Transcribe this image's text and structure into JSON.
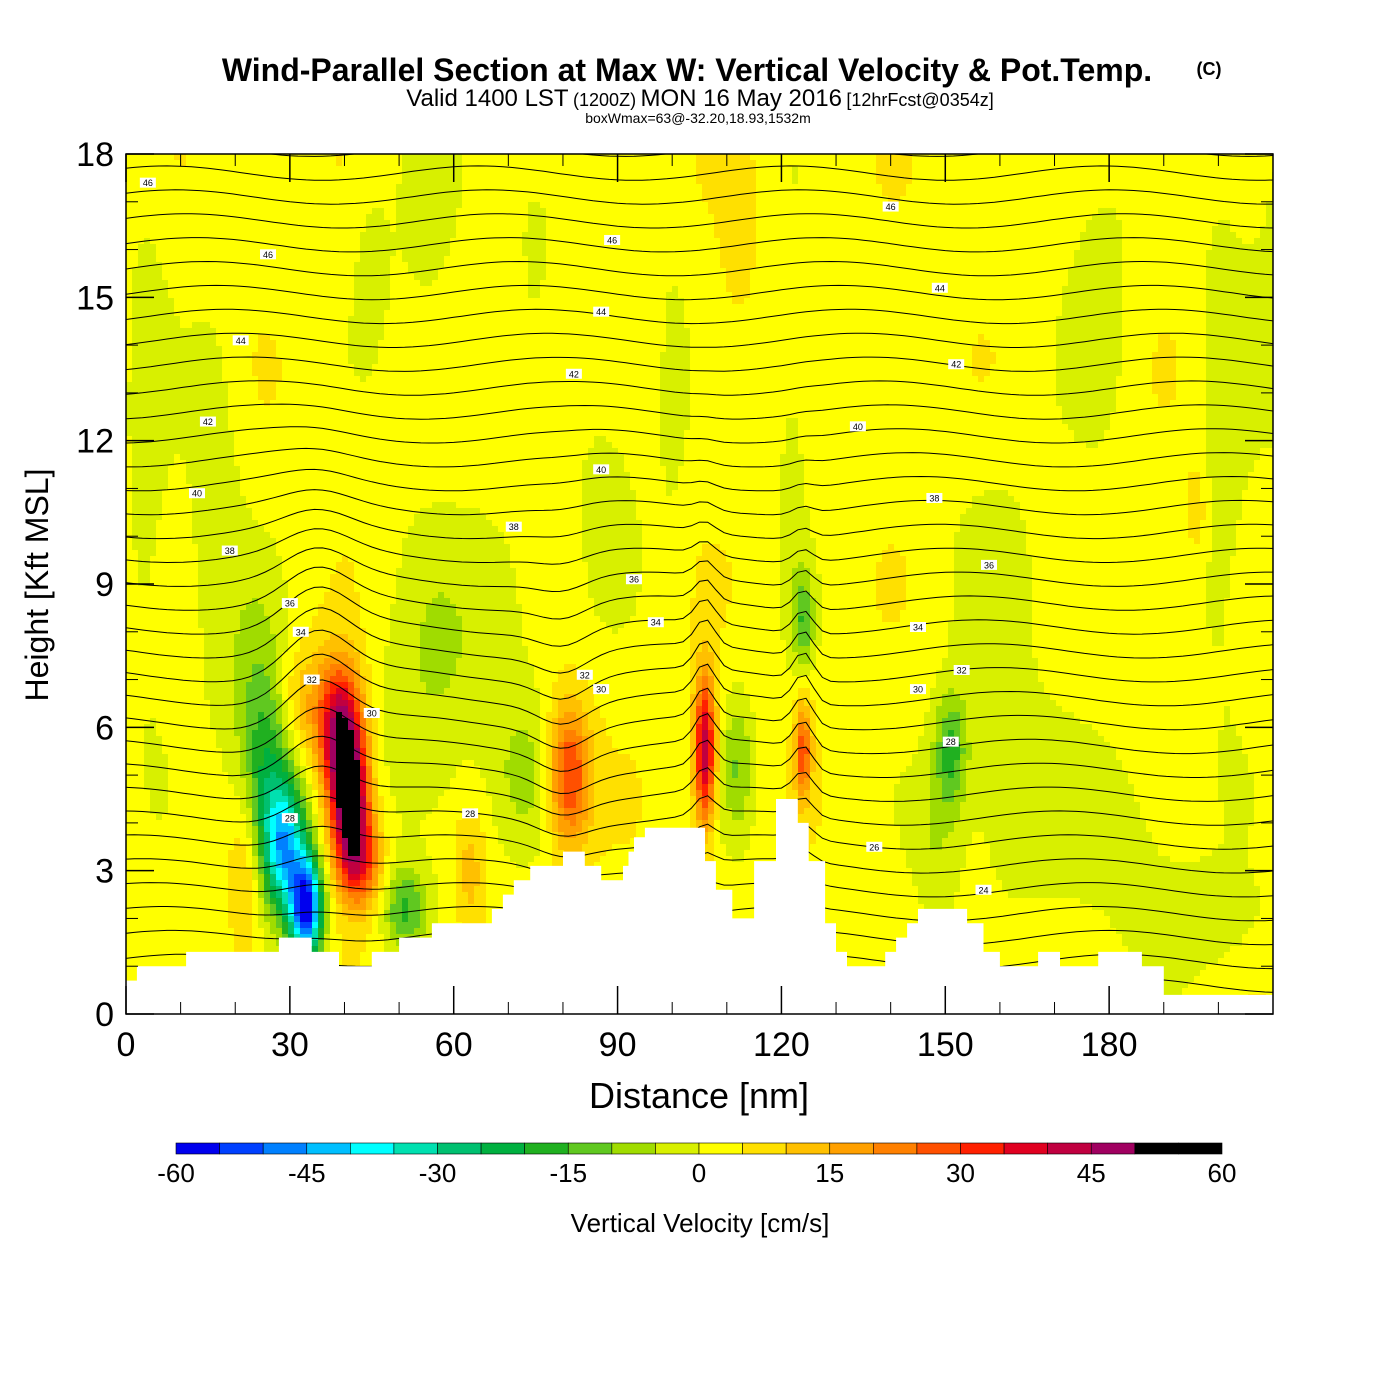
{
  "header": {
    "title": "Wind-Parallel Section at Max W: Vertical Velocity & Pot.Temp.",
    "copyright": "(C)",
    "valid_prefix": "Valid 1400 LST",
    "valid_utc": "(1200Z)",
    "valid_date": "MON 16 May 2016",
    "forecast": "[12hrFcst@0354z]",
    "subtitle": "boxWmax=63@-32.20,18.93,1532m"
  },
  "chart_data": {
    "type": "heatmap",
    "xlabel": "Distance [nm]",
    "ylabel": "Height [Kft MSL]",
    "xlim": [
      0,
      210
    ],
    "ylim": [
      0,
      18
    ],
    "x_ticks": [
      0,
      30,
      60,
      90,
      120,
      150,
      180
    ],
    "y_ticks": [
      0,
      3,
      6,
      9,
      12,
      15,
      18
    ],
    "colorbar": {
      "label": "Vertical Velocity [cm/s]",
      "min": -60,
      "max": 60,
      "step": 5,
      "tick_labels": [
        "-60",
        "-45",
        "-30",
        "-15",
        "0",
        "15",
        "30",
        "45",
        "60"
      ],
      "colors": [
        "#0000ee",
        "#0040ff",
        "#0080ff",
        "#00bfff",
        "#00ffff",
        "#00e0b0",
        "#00c070",
        "#00b040",
        "#20b020",
        "#60c820",
        "#a0dc00",
        "#d8f000",
        "#ffff00",
        "#ffe000",
        "#ffc000",
        "#ffa000",
        "#ff8000",
        "#ff5000",
        "#ff2000",
        "#e00020",
        "#c00040",
        "#a00060"
      ]
    },
    "background_w": 3,
    "terrain": [
      [
        0,
        0.7
      ],
      [
        2,
        0.7
      ],
      [
        2,
        1
      ],
      [
        11,
        1
      ],
      [
        11,
        1.3
      ],
      [
        28,
        1.3
      ],
      [
        28,
        1.6
      ],
      [
        34,
        1.6
      ],
      [
        34,
        1.3
      ],
      [
        39,
        1.3
      ],
      [
        39,
        1
      ],
      [
        45,
        1
      ],
      [
        45,
        1.3
      ],
      [
        50,
        1.3
      ],
      [
        50,
        1.6
      ],
      [
        56,
        1.6
      ],
      [
        56,
        1.9
      ],
      [
        67,
        1.9
      ],
      [
        67,
        2.2
      ],
      [
        69,
        2.2
      ],
      [
        69,
        2.5
      ],
      [
        71,
        2.5
      ],
      [
        71,
        2.8
      ],
      [
        74,
        2.8
      ],
      [
        74,
        3.1
      ],
      [
        80,
        3.1
      ],
      [
        80,
        3.4
      ],
      [
        84,
        3.4
      ],
      [
        84,
        3.1
      ],
      [
        87,
        3.1
      ],
      [
        87,
        2.8
      ],
      [
        91,
        2.8
      ],
      [
        91,
        3.1
      ],
      [
        92,
        3.1
      ],
      [
        92,
        3.4
      ],
      [
        93,
        3.4
      ],
      [
        93,
        3.7
      ],
      [
        95,
        3.7
      ],
      [
        95,
        3.9
      ],
      [
        106,
        3.9
      ],
      [
        106,
        3.2
      ],
      [
        108,
        3.2
      ],
      [
        108,
        2.6
      ],
      [
        111,
        2.6
      ],
      [
        111,
        2.0
      ],
      [
        115,
        2.0
      ],
      [
        115,
        3.2
      ],
      [
        119,
        3.2
      ],
      [
        119,
        4.5
      ],
      [
        123,
        4.5
      ],
      [
        123,
        4.0
      ],
      [
        125,
        4.0
      ],
      [
        125,
        3.2
      ],
      [
        128,
        3.2
      ],
      [
        128,
        1.9
      ],
      [
        130,
        1.9
      ],
      [
        130,
        1.3
      ],
      [
        132,
        1.3
      ],
      [
        132,
        1.0
      ],
      [
        139,
        1.0
      ],
      [
        139,
        1.3
      ],
      [
        141,
        1.3
      ],
      [
        141,
        1.6
      ],
      [
        143,
        1.6
      ],
      [
        143,
        1.9
      ],
      [
        145,
        1.9
      ],
      [
        145,
        2.2
      ],
      [
        154,
        2.2
      ],
      [
        154,
        1.9
      ],
      [
        157,
        1.9
      ],
      [
        157,
        1.3
      ],
      [
        160,
        1.3
      ],
      [
        160,
        1.0
      ],
      [
        167,
        1.0
      ],
      [
        167,
        1.3
      ],
      [
        171,
        1.3
      ],
      [
        171,
        1.0
      ],
      [
        178,
        1.0
      ],
      [
        178,
        1.3
      ],
      [
        186,
        1.3
      ],
      [
        186,
        1.0
      ],
      [
        190,
        1.0
      ],
      [
        190,
        0.4
      ],
      [
        210,
        0.4
      ]
    ],
    "w_features": [
      {
        "x": 22,
        "z": 3,
        "sx": 3,
        "sz": 2,
        "w": 10
      },
      {
        "x": 26,
        "z": 4.8,
        "sx": 5,
        "sz": 2,
        "w": -18
      },
      {
        "x": 29,
        "z": 3.5,
        "sx": 4,
        "sz": 1.4,
        "w": -40
      },
      {
        "x": 33,
        "z": 2.2,
        "sx": 3,
        "sz": 1.1,
        "w": -58
      },
      {
        "x": 24,
        "z": 6.5,
        "sx": 5,
        "sz": 2.5,
        "w": -10
      },
      {
        "x": 39,
        "z": 6.0,
        "sx": 4,
        "sz": 1.4,
        "w": 40
      },
      {
        "x": 41,
        "z": 4.5,
        "sx": 3.5,
        "sz": 1.5,
        "w": 52
      },
      {
        "x": 43,
        "z": 3.2,
        "sx": 4,
        "sz": 1.0,
        "w": 25
      },
      {
        "x": 32,
        "z": 6.5,
        "sx": 4,
        "sz": 1.2,
        "w": 10
      },
      {
        "x": 51,
        "z": 2.2,
        "sx": 4,
        "sz": 0.9,
        "w": -18
      },
      {
        "x": 56,
        "z": 6.5,
        "sx": 10,
        "sz": 3.5,
        "w": -8
      },
      {
        "x": 63,
        "z": 3.0,
        "sx": 3,
        "sz": 1.5,
        "w": 10
      },
      {
        "x": 81,
        "z": 5.0,
        "sx": 4,
        "sz": 1.5,
        "w": 30
      },
      {
        "x": 74,
        "z": 5.0,
        "sx": 6,
        "sz": 1.5,
        "w": -8
      },
      {
        "x": 106,
        "z": 5.5,
        "sx": 2,
        "sz": 1.6,
        "w": 42
      },
      {
        "x": 112,
        "z": 5.2,
        "sx": 3,
        "sz": 1.5,
        "w": -12
      },
      {
        "x": 124,
        "z": 5.5,
        "sx": 1.5,
        "sz": 1.0,
        "w": 25
      },
      {
        "x": 124,
        "z": 8.2,
        "sx": 2,
        "sz": 1.0,
        "w": -15
      },
      {
        "x": 151,
        "z": 5.5,
        "sx": 3,
        "sz": 1.2,
        "w": -18
      },
      {
        "x": 148,
        "z": 3.5,
        "sx": 4,
        "sz": 1.5,
        "w": -6
      },
      {
        "x": 161,
        "z": 4.5,
        "sx": 12,
        "sz": 2.5,
        "w": -6
      },
      {
        "x": 185,
        "z": 3.5,
        "sx": 12,
        "sz": 2.5,
        "w": -5
      },
      {
        "x": 199,
        "z": 2.0,
        "sx": 10,
        "sz": 1.0,
        "w": -6
      },
      {
        "x": 16,
        "z": 10.5,
        "sx": 5,
        "sz": 4,
        "w": -7
      },
      {
        "x": 4,
        "z": 12,
        "sx": 4,
        "sz": 6,
        "w": -6
      },
      {
        "x": 55,
        "z": 17,
        "sx": 5,
        "sz": 2.5,
        "w": -6
      },
      {
        "x": 45,
        "z": 16,
        "sx": 4,
        "sz": 2,
        "w": -5
      },
      {
        "x": 75,
        "z": 17,
        "sx": 6,
        "sz": 2,
        "w": -5
      },
      {
        "x": 100,
        "z": 13,
        "sx": 3,
        "sz": 3,
        "w": -5
      },
      {
        "x": 122,
        "z": 12,
        "sx": 3,
        "sz": 4,
        "w": -5
      },
      {
        "x": 178,
        "z": 15,
        "sx": 6,
        "sz": 3,
        "w": -6
      },
      {
        "x": 201,
        "z": 12,
        "sx": 5,
        "sz": 6,
        "w": -6
      },
      {
        "x": 215,
        "z": 16,
        "sx": 8,
        "sz": 4,
        "w": -8
      },
      {
        "x": 88,
        "z": 11,
        "sx": 6,
        "sz": 2.5,
        "w": -5
      },
      {
        "x": 70,
        "z": 8.5,
        "sx": 8,
        "sz": 2.5,
        "w": -5
      },
      {
        "x": 160,
        "z": 9,
        "sx": 10,
        "sz": 3,
        "w": -4
      },
      {
        "x": 112,
        "z": 16.5,
        "sx": 3,
        "sz": 2,
        "w": 6
      },
      {
        "x": 196,
        "z": 10.5,
        "sx": 2,
        "sz": 1,
        "w": 8
      }
    ],
    "theta_labels": [
      {
        "x": 4,
        "z": 17.4,
        "text": "46"
      },
      {
        "x": 26,
        "z": 15.9,
        "text": "46"
      },
      {
        "x": 89,
        "z": 16.2,
        "text": "46"
      },
      {
        "x": 140,
        "z": 16.9,
        "text": "46"
      },
      {
        "x": 21,
        "z": 14.1,
        "text": "44"
      },
      {
        "x": 87,
        "z": 14.7,
        "text": "44"
      },
      {
        "x": 149,
        "z": 15.2,
        "text": "44"
      },
      {
        "x": 15,
        "z": 12.4,
        "text": "42"
      },
      {
        "x": 82,
        "z": 13.4,
        "text": "42"
      },
      {
        "x": 152,
        "z": 13.6,
        "text": "42"
      },
      {
        "x": 13,
        "z": 10.9,
        "text": "40"
      },
      {
        "x": 87,
        "z": 11.4,
        "text": "40"
      },
      {
        "x": 134,
        "z": 12.3,
        "text": "40"
      },
      {
        "x": 19,
        "z": 9.7,
        "text": "38"
      },
      {
        "x": 71,
        "z": 10.2,
        "text": "38"
      },
      {
        "x": 148,
        "z": 10.8,
        "text": "38"
      },
      {
        "x": 30,
        "z": 8.6,
        "text": "36"
      },
      {
        "x": 93,
        "z": 9.1,
        "text": "36"
      },
      {
        "x": 158,
        "z": 9.4,
        "text": "36"
      },
      {
        "x": 32,
        "z": 8.0,
        "text": "34"
      },
      {
        "x": 97,
        "z": 8.2,
        "text": "34"
      },
      {
        "x": 145,
        "z": 8.1,
        "text": "34"
      },
      {
        "x": 34,
        "z": 7.0,
        "text": "32"
      },
      {
        "x": 84,
        "z": 7.1,
        "text": "32"
      },
      {
        "x": 153,
        "z": 7.2,
        "text": "32"
      },
      {
        "x": 45,
        "z": 6.3,
        "text": "30"
      },
      {
        "x": 87,
        "z": 6.8,
        "text": "30"
      },
      {
        "x": 145,
        "z": 6.8,
        "text": "30"
      },
      {
        "x": 30,
        "z": 4.1,
        "text": "28"
      },
      {
        "x": 63,
        "z": 4.2,
        "text": "28"
      },
      {
        "x": 151,
        "z": 5.7,
        "text": "28"
      },
      {
        "x": 137,
        "z": 3.5,
        "text": "26"
      },
      {
        "x": 157,
        "z": 2.6,
        "text": "24"
      }
    ]
  },
  "ticks_x_labels": [
    "0",
    "30",
    "60",
    "90",
    "120",
    "150",
    "180"
  ],
  "ticks_y_labels": [
    "0",
    "3",
    "6",
    "9",
    "12",
    "15",
    "18"
  ]
}
